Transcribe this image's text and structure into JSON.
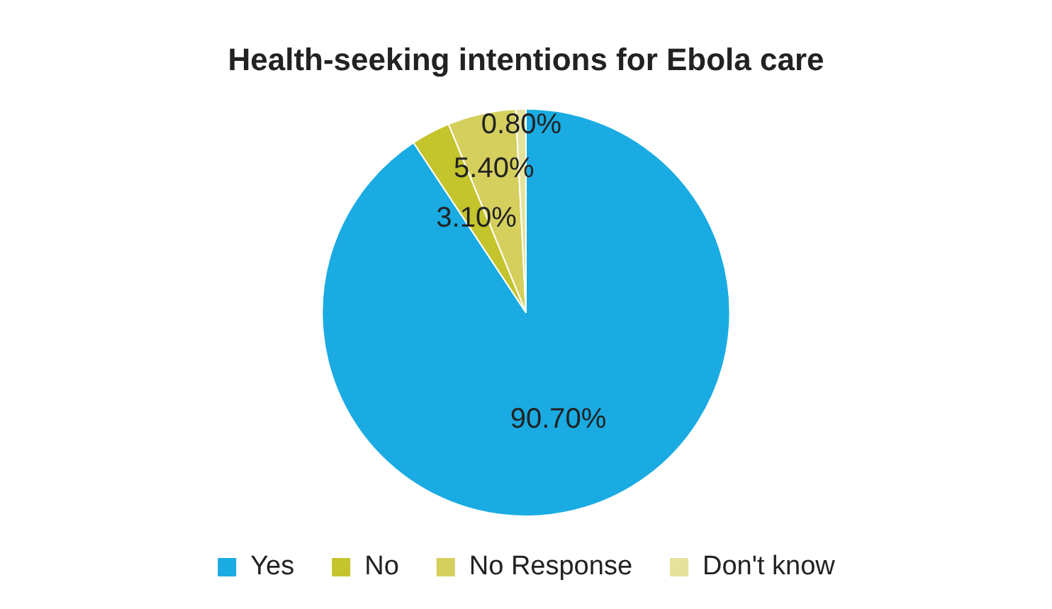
{
  "chart_data": {
    "type": "pie",
    "title": "Health-seeking intentions for Ebola care",
    "categories": [
      "Yes",
      "No",
      "No Response",
      "Don't know"
    ],
    "values": [
      90.7,
      3.1,
      5.4,
      0.8
    ],
    "value_labels": [
      "90.70%",
      "3.10%",
      "5.40%",
      "0.80%"
    ],
    "colors": [
      "#1aabe2",
      "#c4c42c",
      "#d5cf5e",
      "#e5e29c"
    ],
    "legend": "bottom"
  }
}
